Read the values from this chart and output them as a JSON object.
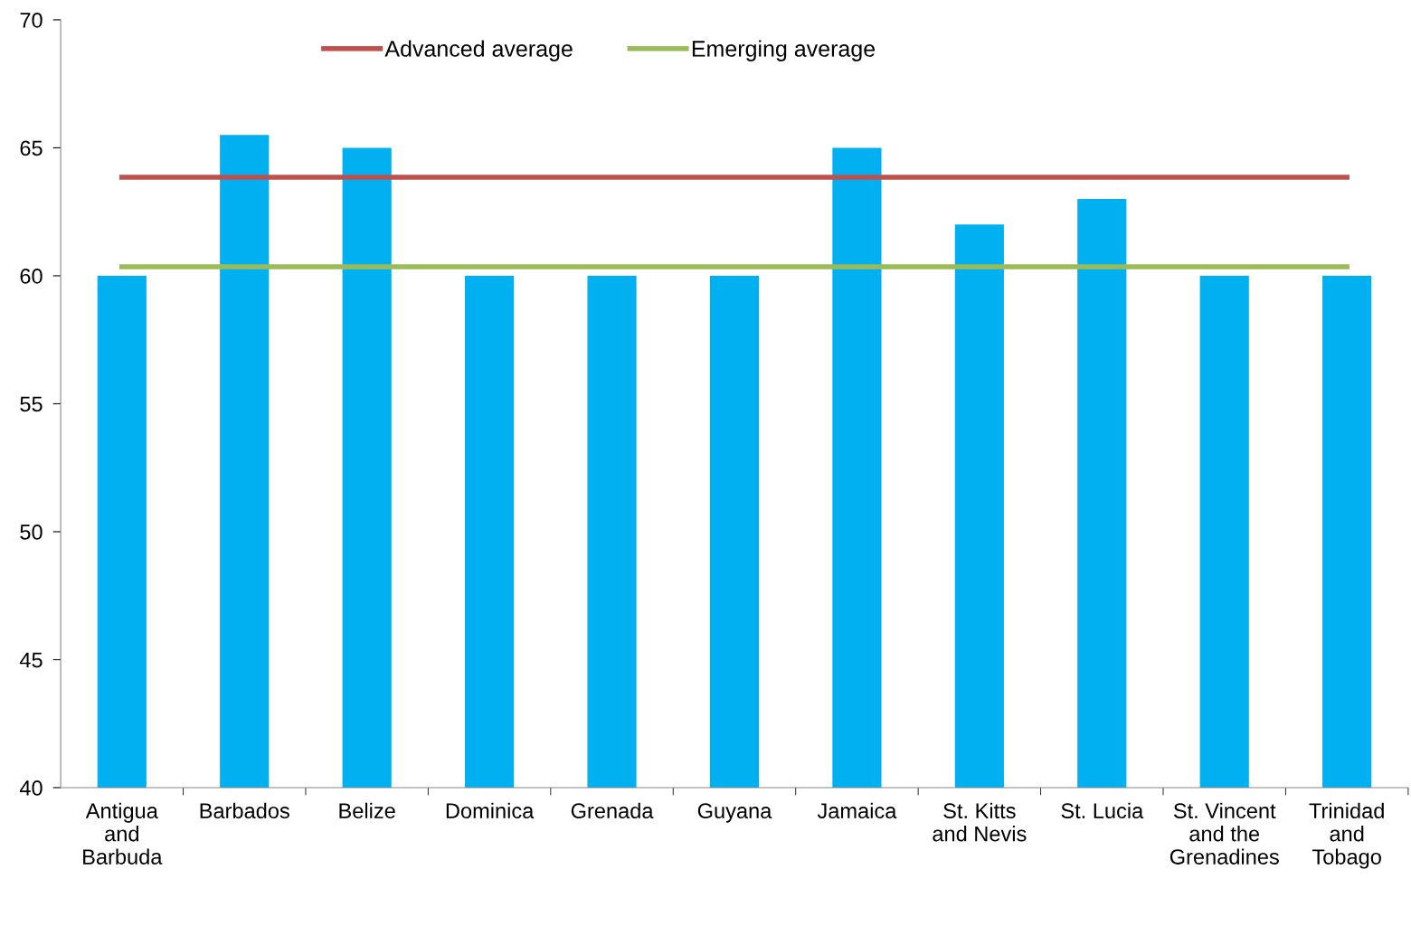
{
  "chart_data": {
    "type": "bar",
    "categories": [
      "Antigua\nand\nBarbuda",
      "Barbados",
      "Belize",
      "Dominica",
      "Grenada",
      "Guyana",
      "Jamaica",
      "St. Kitts\nand Nevis",
      "St. Lucia",
      "St. Vincent\nand the\nGrenadines",
      "Trinidad\nand\nTobago"
    ],
    "series": [
      {
        "color": "#00b0f0",
        "values": [
          60,
          65.5,
          65,
          60,
          60,
          60,
          65,
          62,
          63,
          60,
          60
        ]
      },
      {
        "type": "line",
        "name": "Advanced average",
        "color": "#c0504d",
        "values": [
          63.85,
          63.85,
          63.85,
          63.85,
          63.85,
          63.85,
          63.85,
          63.85,
          63.85,
          63.85,
          63.85
        ]
      },
      {
        "type": "line",
        "name": "Emerging average",
        "color": "#9bbb59",
        "values": [
          60.35,
          60.35,
          60.35,
          60.35,
          60.35,
          60.35,
          60.35,
          60.35,
          60.35,
          60.35,
          60.35
        ]
      }
    ],
    "ylim": [
      40,
      70
    ],
    "yticks": [
      40,
      45,
      50,
      55,
      60,
      65,
      70
    ],
    "grid": false,
    "legend": "top",
    "marker": "none",
    "line_style": "solid"
  }
}
